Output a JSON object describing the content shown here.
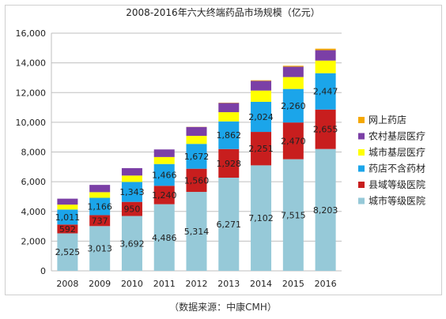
{
  "chart_data": {
    "type": "bar",
    "stacked": true,
    "title": "2008-2016年六大终端药品市场规模（亿元）",
    "source": "（数据来源：中康CMH）",
    "categories": [
      "2008",
      "2009",
      "2010",
      "2011",
      "2012",
      "2013",
      "2014",
      "2015",
      "2016"
    ],
    "ylim": [
      0,
      16000
    ],
    "yticks": [
      "0",
      "2,000",
      "4,000",
      "6,000",
      "8,000",
      "10,000",
      "12,000",
      "14,000",
      "16,000"
    ],
    "grid": true,
    "legend_position": "right",
    "series": [
      {
        "name": "城市等级医院",
        "color": "#96c9d8",
        "values": [
          2525,
          3013,
          3692,
          4486,
          5314,
          6271,
          7102,
          7515,
          8203
        ],
        "labels": [
          "2,525",
          "3,013",
          "3,692",
          "4,486",
          "5,314",
          "6,271",
          "7,102",
          "7,515",
          "8,203"
        ]
      },
      {
        "name": "县域等级医院",
        "color": "#c81e1e",
        "values": [
          592,
          737,
          950,
          1240,
          1560,
          1928,
          2251,
          2470,
          2655
        ],
        "labels": [
          "592",
          "737",
          "950",
          "1,240",
          "1,560",
          "1,928",
          "2,251",
          "2,470",
          "2,655"
        ]
      },
      {
        "name": "药店不含药材",
        "color": "#1ba5ea",
        "values": [
          1011,
          1166,
          1343,
          1466,
          1672,
          1862,
          2024,
          2260,
          2447
        ],
        "labels": [
          "1,011",
          "1,166",
          "1,343",
          "1,466",
          "1,672",
          "1,862",
          "2,024",
          "2,260",
          "2,447"
        ]
      },
      {
        "name": "城市基层医疗",
        "color": "#ffff00",
        "values": [
          330,
          380,
          430,
          470,
          540,
          620,
          760,
          800,
          850
        ]
      },
      {
        "name": "农村基层医疗",
        "color": "#7b3fa6",
        "values": [
          400,
          490,
          500,
          510,
          600,
          620,
          650,
          700,
          700
        ]
      },
      {
        "name": "网上药店",
        "color": "#f5a800",
        "values": [
          0,
          0,
          0,
          0,
          10,
          20,
          40,
          60,
          100
        ]
      }
    ]
  }
}
